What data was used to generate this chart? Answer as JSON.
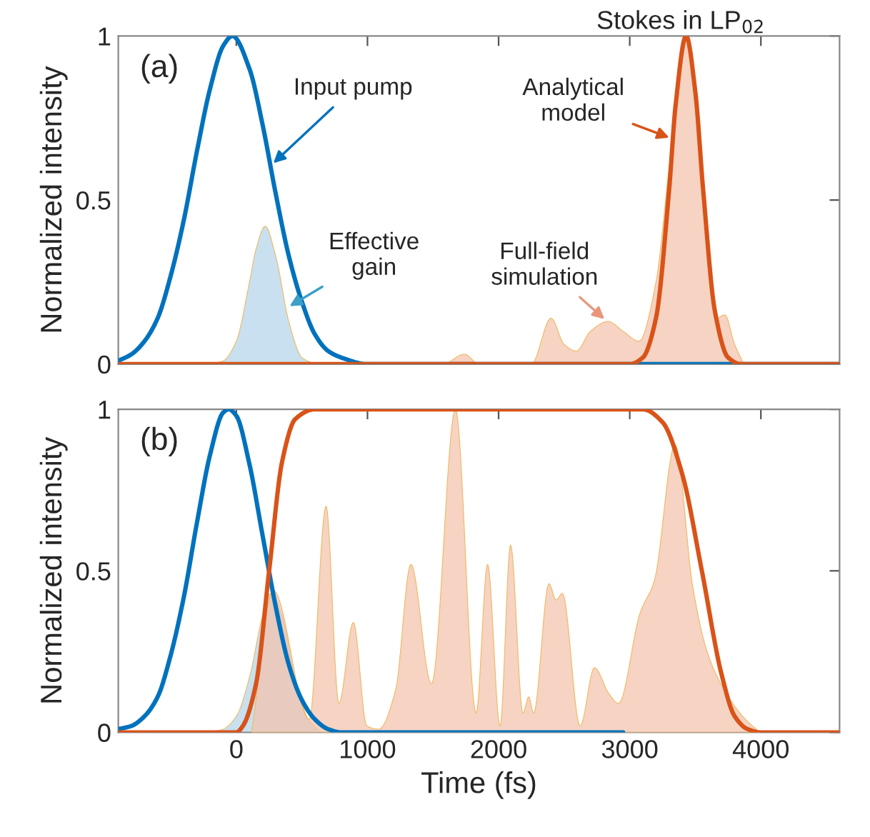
{
  "chart_data": [
    {
      "type": "line",
      "ylabel": "Normalized intensity",
      "annotations": [
        "(a)",
        "Stokes in LP$_{02}$"
      ],
      "xlim": [
        -900,
        4600
      ],
      "ylim": [
        0,
        1
      ],
      "xticks": [
        0,
        1000,
        2000,
        3000,
        4000
      ],
      "yticks": [
        0,
        0.5,
        1
      ],
      "tick_labels": "y",
      "series": [
        {
          "name": "Effective gain",
          "type": "area",
          "color": "#b6d5ea",
          "x": [
            -200,
            -100,
            0,
            100,
            150,
            220,
            300,
            400,
            500,
            600
          ],
          "values": [
            0,
            0.01,
            0.07,
            0.25,
            0.35,
            0.42,
            0.33,
            0.13,
            0.02,
            0
          ]
        },
        {
          "name": "Full-field simulation",
          "type": "area",
          "color": "#f3c4ae",
          "x": [
            1600,
            1740,
            1850,
            2250,
            2400,
            2500,
            2593,
            2700,
            2835,
            2950,
            3070,
            3200,
            3300,
            3420,
            3520,
            3600,
            3660,
            3725,
            3800,
            3870
          ],
          "values": [
            0,
            0.03,
            0,
            0,
            0.14,
            0.06,
            0.04,
            0.1,
            0.13,
            0.1,
            0.07,
            0.25,
            0.6,
            1,
            0.7,
            0.3,
            0.14,
            0.15,
            0.06,
            0
          ]
        },
        {
          "name": "Input pump",
          "color": "#0072bd",
          "x": [
            -900,
            -800,
            -700,
            -600,
            -500,
            -400,
            -300,
            -200,
            -100,
            -30,
            100,
            200,
            300,
            400,
            500,
            600,
            700,
            800,
            1000,
            4600
          ],
          "values": [
            0.01,
            0.03,
            0.07,
            0.14,
            0.27,
            0.44,
            0.65,
            0.84,
            0.97,
            1,
            0.9,
            0.73,
            0.52,
            0.33,
            0.19,
            0.09,
            0.04,
            0.02,
            0,
            0
          ]
        },
        {
          "name": "Analytical model",
          "color": "#d95319",
          "x": [
            -900,
            3000,
            3100,
            3200,
            3300,
            3350,
            3430,
            3500,
            3560,
            3650,
            3750,
            3850,
            4600
          ],
          "values": [
            0,
            0,
            0.02,
            0.14,
            0.53,
            0.79,
            1,
            0.83,
            0.53,
            0.16,
            0.02,
            0,
            0
          ]
        }
      ]
    },
    {
      "type": "line",
      "xlabel": "Time (fs)",
      "ylabel": "Normalized intensity",
      "annotations": [
        "(b)"
      ],
      "xlim": [
        -900,
        4600
      ],
      "ylim": [
        0,
        1
      ],
      "xticks": [
        0,
        1000,
        2000,
        3000,
        4000
      ],
      "yticks": [
        0,
        0.5,
        1
      ],
      "series": [
        {
          "type": "area",
          "color": "#b6d5ea",
          "x": [
            -200,
            -100,
            0,
            100,
            200,
            263,
            350,
            450,
            550,
            650
          ],
          "values": [
            0,
            0.01,
            0.05,
            0.17,
            0.36,
            0.43,
            0.36,
            0.16,
            0.04,
            0
          ]
        },
        {
          "type": "area",
          "color": "#f3c4ae",
          "x": [
            117,
            282,
            556,
            684,
            782,
            892,
            995,
            1086,
            1214,
            1331,
            1488,
            1671,
            1828,
            1916,
            2011,
            2091,
            2186,
            2230,
            2267,
            2384,
            2439,
            2486,
            2622,
            2731,
            2841,
            2914,
            3079,
            3188,
            3346,
            3481,
            3590,
            3737,
            3883,
            3993
          ],
          "values": [
            0,
            0.44,
            0.04,
            0.7,
            0.09,
            0.34,
            0.02,
            0.01,
            0.13,
            0.52,
            0.15,
            1,
            0.06,
            0.52,
            0.02,
            0.58,
            0.06,
            0.11,
            0.06,
            0.46,
            0.41,
            0.43,
            0.02,
            0.2,
            0.12,
            0.09,
            0.37,
            0.47,
            0.89,
            0.45,
            0.25,
            0.12,
            0.04,
            0
          ]
        },
        {
          "color": "#0072bd",
          "x": [
            -900,
            -800,
            -700,
            -600,
            -500,
            -400,
            -300,
            -200,
            -100,
            -58,
            0,
            100,
            200,
            300,
            400,
            500,
            600,
            700,
            800,
            1000,
            2950
          ],
          "values": [
            0.01,
            0.02,
            0.05,
            0.11,
            0.24,
            0.42,
            0.65,
            0.86,
            0.99,
            1,
            0.98,
            0.83,
            0.61,
            0.39,
            0.21,
            0.1,
            0.04,
            0.01,
            0,
            0,
            0
          ]
        },
        {
          "color": "#d95319",
          "x": [
            -900,
            0,
            50,
            150,
            250,
            350,
            450,
            600,
            3100,
            3250,
            3400,
            3550,
            3700,
            3800,
            3900,
            4000,
            4600
          ],
          "values": [
            0,
            0,
            0.02,
            0.15,
            0.5,
            0.84,
            0.97,
            1,
            1,
            0.96,
            0.8,
            0.5,
            0.18,
            0.05,
            0.01,
            0,
            0
          ]
        }
      ]
    }
  ]
}
